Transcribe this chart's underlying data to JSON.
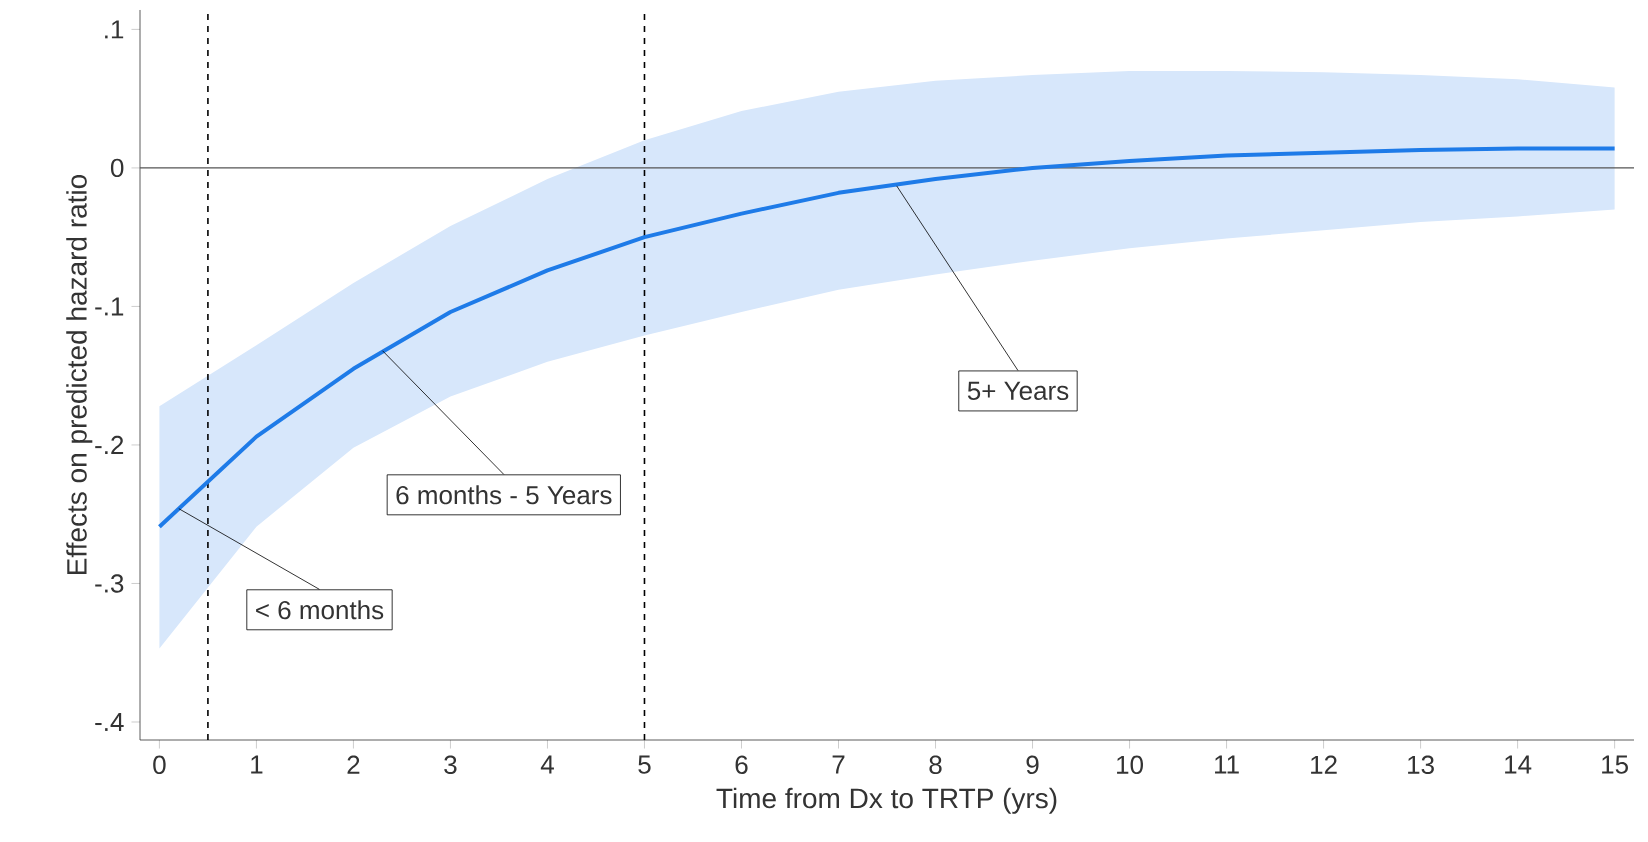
{
  "chart_data": {
    "type": "line",
    "xlabel": "Time from Dx to TRTP (yrs)",
    "ylabel": "Effects on predicted hazard ratio",
    "x": [
      0,
      1,
      2,
      3,
      4,
      5,
      6,
      7,
      8,
      9,
      10,
      11,
      12,
      13,
      14,
      15
    ],
    "series": [
      {
        "color": "#1e7be8",
        "values": [
          -0.259,
          -0.194,
          -0.145,
          -0.104,
          -0.074,
          -0.05,
          -0.033,
          -0.018,
          -0.008,
          0.0,
          0.005,
          0.009,
          0.011,
          0.013,
          0.014,
          0.014
        ],
        "upper": [
          -0.172,
          -0.128,
          -0.083,
          -0.042,
          -0.008,
          0.02,
          0.041,
          0.055,
          0.063,
          0.067,
          0.07,
          0.07,
          0.069,
          0.067,
          0.064,
          0.058
        ],
        "lower": [
          -0.347,
          -0.259,
          -0.202,
          -0.165,
          -0.14,
          -0.121,
          -0.104,
          -0.088,
          -0.077,
          -0.067,
          -0.058,
          -0.051,
          -0.045,
          -0.039,
          -0.035,
          -0.03
        ]
      }
    ],
    "xlim": [
      -0.2,
      15.2
    ],
    "ylim": [
      -0.413,
      0.114
    ],
    "xticks": [
      0,
      1,
      2,
      3,
      4,
      5,
      6,
      7,
      8,
      9,
      10,
      11,
      12,
      13,
      14,
      15
    ],
    "yticks": [
      {
        "value": -0.4,
        "label": "-.4"
      },
      {
        "value": -0.3,
        "label": "-.3"
      },
      {
        "value": -0.2,
        "label": "-.2"
      },
      {
        "value": -0.1,
        "label": "-.1"
      },
      {
        "value": 0,
        "label": "0"
      },
      {
        "value": 0.1,
        "label": ".1"
      }
    ],
    "ref_lines": [
      {
        "axis": "x",
        "value": 0.5,
        "color": "#000000",
        "line_style": "dashed"
      },
      {
        "axis": "x",
        "value": 5,
        "color": "#000000",
        "line_style": "dashed"
      },
      {
        "axis": "y",
        "value": 0,
        "color": "#555555",
        "line_style": "solid"
      }
    ],
    "annotations": [
      {
        "text": "< 6 months",
        "x": 0.2,
        "y": -0.246
      },
      {
        "text": "6 months - 5 Years",
        "x": 2.3,
        "y": -0.132
      },
      {
        "text": "5+ Years",
        "x": 7.6,
        "y": -0.013
      }
    ],
    "line_style": "solid"
  }
}
